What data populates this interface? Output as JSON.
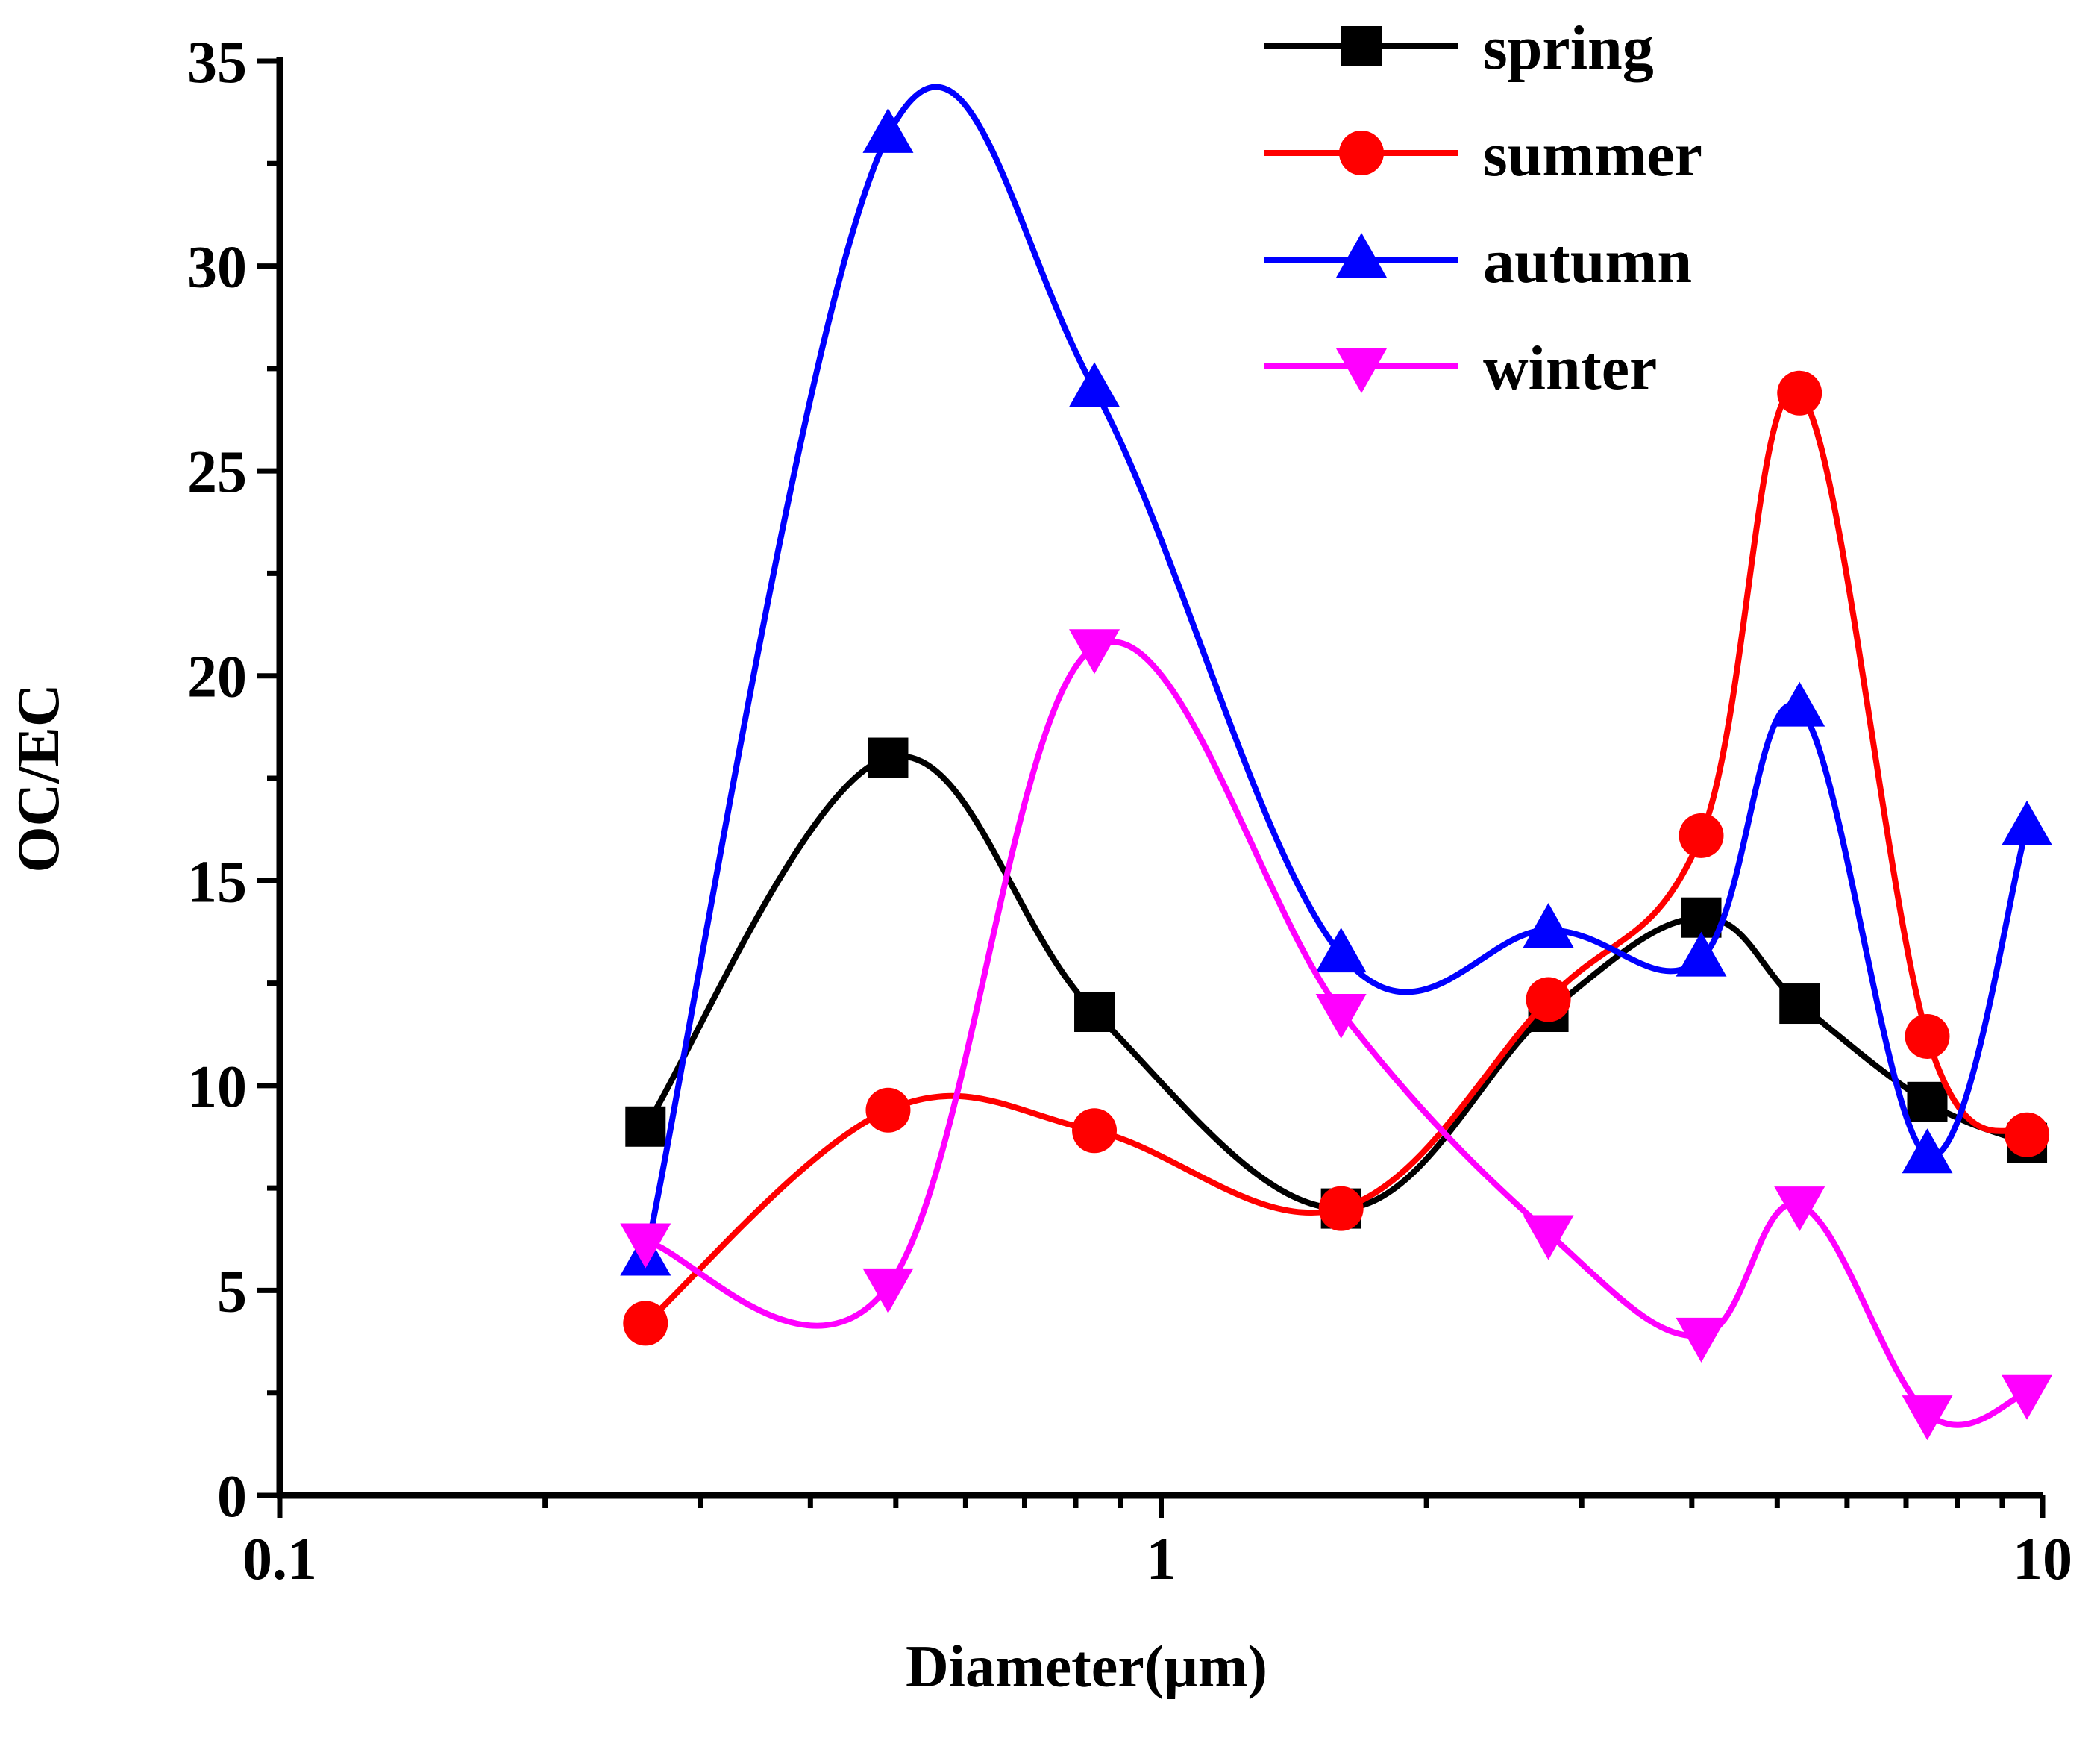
{
  "chart_data": {
    "type": "line",
    "title": "",
    "xlabel": "Diameter(μm)",
    "ylabel": "OC/EC",
    "xscale": "log",
    "xlim": [
      0.1,
      10
    ],
    "ylim": [
      0,
      35
    ],
    "xticks": [
      {
        "value": 0.1,
        "label": "0.1"
      },
      {
        "value": 1,
        "label": "1"
      },
      {
        "value": 10,
        "label": "10"
      }
    ],
    "yticks": [
      {
        "value": 0,
        "label": "0"
      },
      {
        "value": 5,
        "label": "5"
      },
      {
        "value": 10,
        "label": "10"
      },
      {
        "value": 15,
        "label": "15"
      },
      {
        "value": 20,
        "label": "20"
      },
      {
        "value": 25,
        "label": "25"
      },
      {
        "value": 30,
        "label": "30"
      },
      {
        "value": 35,
        "label": "35"
      }
    ],
    "legend_position": "top-right",
    "x": [
      0.26,
      0.49,
      0.84,
      1.6,
      2.75,
      4.1,
      5.3,
      7.4,
      9.6
    ],
    "series": [
      {
        "name": "spring",
        "color": "#000000",
        "marker": "square",
        "values": [
          9.0,
          18.0,
          11.8,
          7.0,
          11.8,
          14.1,
          12.0,
          9.6,
          8.6
        ]
      },
      {
        "name": "summer",
        "color": "#ff0000",
        "marker": "circle",
        "values": [
          4.2,
          9.4,
          8.9,
          7.0,
          12.1,
          16.1,
          26.9,
          11.2,
          8.8
        ]
      },
      {
        "name": "autumn",
        "color": "#0000ff",
        "marker": "triangle-up",
        "values": [
          5.8,
          33.2,
          27.0,
          13.2,
          13.8,
          13.1,
          19.2,
          8.3,
          16.3
        ]
      },
      {
        "name": "winter",
        "color": "#ff00ff",
        "marker": "triangle-down",
        "values": [
          6.2,
          5.1,
          20.7,
          11.8,
          6.4,
          3.9,
          7.1,
          2.0,
          2.5
        ]
      }
    ]
  }
}
